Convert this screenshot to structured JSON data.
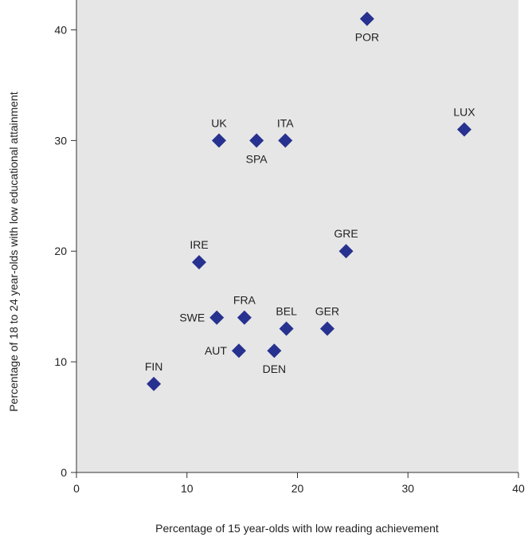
{
  "chart_data": {
    "type": "scatter",
    "title": "",
    "xlabel": "Percentage of 15 year-olds with low reading achievement",
    "ylabel": "Percentage of 18 to 24 year-olds with low educational attainment",
    "xlim": [
      0,
      40
    ],
    "ylim": [
      0,
      42.7
    ],
    "xticks": [
      "0",
      "10",
      "20",
      "30",
      "40"
    ],
    "yticks": [
      "0",
      "10",
      "20",
      "30",
      "40"
    ],
    "grid": false,
    "plot_bg_color": "#e6e6e6",
    "marker_color": "#27318f",
    "marker": "diamond",
    "points": [
      {
        "label": "FIN",
        "x": 7.0,
        "y": 8,
        "label_pos": "above"
      },
      {
        "label": "AUT",
        "x": 14.7,
        "y": 11,
        "label_pos": "left"
      },
      {
        "label": "DEN",
        "x": 17.9,
        "y": 11,
        "label_pos": "below"
      },
      {
        "label": "SWE",
        "x": 12.7,
        "y": 14,
        "label_pos": "left"
      },
      {
        "label": "FRA",
        "x": 15.2,
        "y": 14,
        "label_pos": "above"
      },
      {
        "label": "BEL",
        "x": 19.0,
        "y": 13,
        "label_pos": "above"
      },
      {
        "label": "GER",
        "x": 22.7,
        "y": 13,
        "label_pos": "above"
      },
      {
        "label": "IRE",
        "x": 11.1,
        "y": 19,
        "label_pos": "above"
      },
      {
        "label": "GRE",
        "x": 24.4,
        "y": 20,
        "label_pos": "above"
      },
      {
        "label": "UK",
        "x": 12.9,
        "y": 30,
        "label_pos": "above"
      },
      {
        "label": "SPA",
        "x": 16.3,
        "y": 30,
        "label_pos": "below"
      },
      {
        "label": "ITA",
        "x": 18.9,
        "y": 30,
        "label_pos": "above"
      },
      {
        "label": "LUX",
        "x": 35.1,
        "y": 31,
        "label_pos": "above"
      },
      {
        "label": "POR",
        "x": 26.3,
        "y": 41,
        "label_pos": "below"
      }
    ]
  }
}
